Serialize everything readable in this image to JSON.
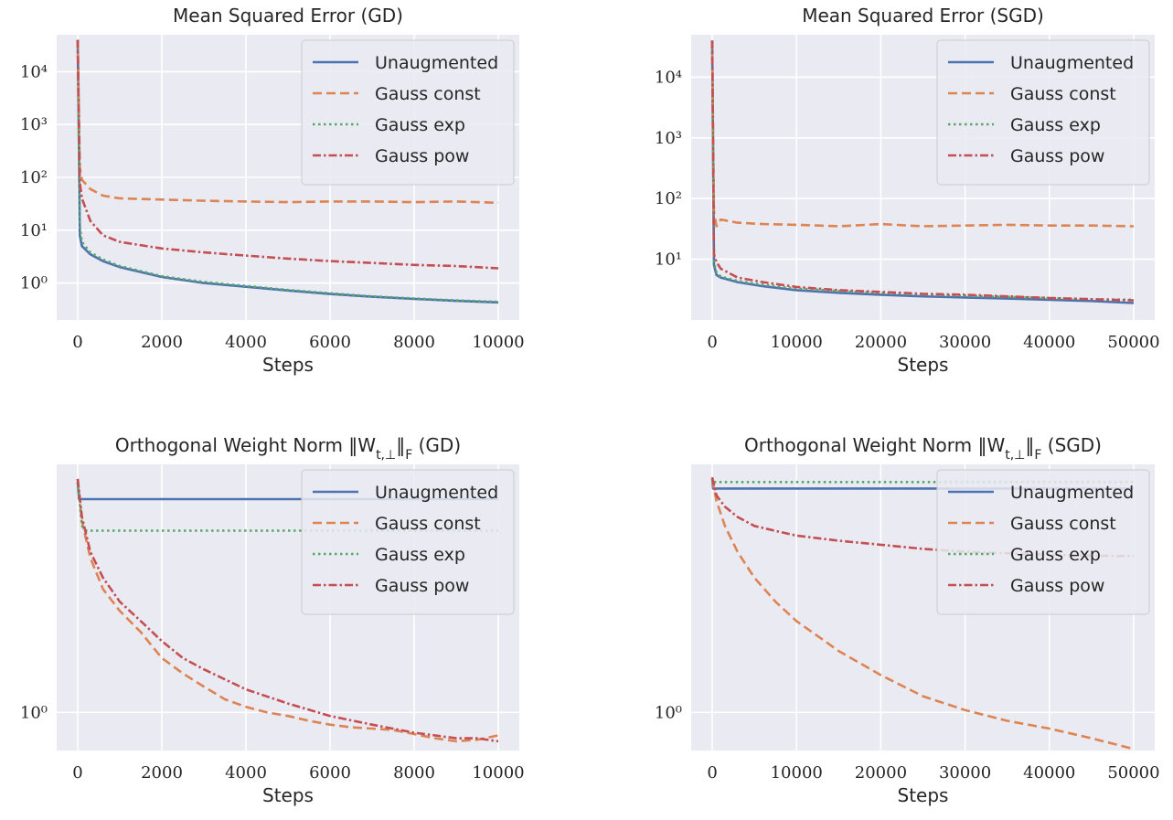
{
  "chart_data": [
    {
      "type": "line",
      "title": "Mean Squared Error (GD)",
      "xlabel": "Steps",
      "ylabel": "",
      "yscale": "log",
      "xlim": [
        -500,
        10500
      ],
      "ylim": [
        0.2,
        50000
      ],
      "xticks": [
        0,
        2000,
        4000,
        6000,
        8000,
        10000
      ],
      "xtick_labels": [
        "0",
        "2000",
        "4000",
        "6000",
        "8000",
        "10000"
      ],
      "yticks": [
        1,
        10,
        100,
        1000,
        10000
      ],
      "ytick_labels": [
        "10⁰",
        "10¹",
        "10²",
        "10³",
        "10⁴"
      ],
      "legend_position": "top-right",
      "series": [
        {
          "name": "Unaugmented",
          "color": "#4c72b0",
          "style": "solid",
          "x": [
            0,
            50,
            100,
            300,
            600,
            1000,
            2000,
            3000,
            4000,
            5000,
            6000,
            7000,
            8000,
            9000,
            10000
          ],
          "y": [
            40000,
            8,
            5,
            3.5,
            2.6,
            2.0,
            1.3,
            1.0,
            0.85,
            0.72,
            0.62,
            0.55,
            0.5,
            0.46,
            0.43
          ]
        },
        {
          "name": "Gauss const",
          "color": "#dd8452",
          "style": "dashed",
          "x": [
            0,
            50,
            100,
            300,
            600,
            1000,
            2000,
            3000,
            4000,
            5000,
            6000,
            7000,
            8000,
            9000,
            10000
          ],
          "y": [
            40000,
            150,
            90,
            60,
            45,
            40,
            38,
            36,
            35,
            34,
            35,
            35,
            34,
            35,
            33
          ]
        },
        {
          "name": "Gauss exp",
          "color": "#55a868",
          "style": "dotted",
          "x": [
            0,
            50,
            100,
            300,
            600,
            1000,
            2000,
            3000,
            4000,
            5000,
            6000,
            7000,
            8000,
            9000,
            10000
          ],
          "y": [
            40000,
            12,
            6,
            3.8,
            2.8,
            2.1,
            1.35,
            1.05,
            0.88,
            0.74,
            0.64,
            0.56,
            0.51,
            0.47,
            0.44
          ]
        },
        {
          "name": "Gauss pow",
          "color": "#c44e52",
          "style": "dashdot",
          "x": [
            0,
            50,
            100,
            300,
            600,
            1000,
            2000,
            3000,
            4000,
            5000,
            6000,
            7000,
            8000,
            9000,
            10000
          ],
          "y": [
            40000,
            80,
            40,
            15,
            8,
            6,
            4.5,
            3.8,
            3.3,
            2.9,
            2.6,
            2.4,
            2.2,
            2.1,
            1.9
          ]
        }
      ]
    },
    {
      "type": "line",
      "title": "Mean Squared Error (SGD)",
      "xlabel": "Steps",
      "ylabel": "",
      "yscale": "log",
      "xlim": [
        -2500,
        52500
      ],
      "ylim": [
        1.0,
        50000
      ],
      "xticks": [
        0,
        10000,
        20000,
        30000,
        40000,
        50000
      ],
      "xtick_labels": [
        "0",
        "10000",
        "20000",
        "30000",
        "40000",
        "50000"
      ],
      "yticks": [
        10,
        100,
        1000,
        10000
      ],
      "ytick_labels": [
        "10¹",
        "10²",
        "10³",
        "10⁴"
      ],
      "legend_position": "top-right",
      "series": [
        {
          "name": "Unaugmented",
          "color": "#4c72b0",
          "style": "solid",
          "x": [
            0,
            200,
            500,
            1000,
            3000,
            6000,
            10000,
            15000,
            20000,
            25000,
            30000,
            35000,
            40000,
            45000,
            50000
          ],
          "y": [
            40000,
            8,
            5.5,
            5.0,
            4.2,
            3.6,
            3.1,
            2.8,
            2.6,
            2.45,
            2.35,
            2.25,
            2.15,
            2.05,
            1.9
          ]
        },
        {
          "name": "Gauss const",
          "color": "#dd8452",
          "style": "dashed",
          "x": [
            0,
            200,
            500,
            1000,
            3000,
            6000,
            10000,
            15000,
            20000,
            25000,
            30000,
            35000,
            40000,
            45000,
            50000
          ],
          "y": [
            40000,
            60,
            35,
            45,
            40,
            38,
            37,
            35,
            38,
            35,
            36,
            37,
            36,
            36,
            35
          ]
        },
        {
          "name": "Gauss exp",
          "color": "#55a868",
          "style": "dotted",
          "x": [
            0,
            200,
            500,
            1000,
            3000,
            6000,
            10000,
            15000,
            20000,
            25000,
            30000,
            35000,
            40000,
            45000,
            50000
          ],
          "y": [
            40000,
            9,
            6,
            5.2,
            4.4,
            3.8,
            3.3,
            3.0,
            2.8,
            2.6,
            2.5,
            2.4,
            2.3,
            2.2,
            2.15
          ]
        },
        {
          "name": "Gauss pow",
          "color": "#c44e52",
          "style": "dashdot",
          "x": [
            0,
            200,
            500,
            1000,
            3000,
            6000,
            10000,
            15000,
            20000,
            25000,
            30000,
            35000,
            40000,
            45000,
            50000
          ],
          "y": [
            40000,
            12,
            9,
            7,
            5,
            4.2,
            3.5,
            3.1,
            2.9,
            2.7,
            2.6,
            2.45,
            2.3,
            2.2,
            2.1
          ]
        }
      ]
    },
    {
      "type": "line",
      "title": "Orthogonal Weight Norm ‖W",
      "title_sub": "t,⊥",
      "title_mid": "‖",
      "title_sub2": "F",
      "title_end": " (GD)",
      "xlabel": "Steps",
      "ylabel": "",
      "yscale": "log",
      "xlim": [
        -500,
        10500
      ],
      "ylim": [
        0.72,
        8.5
      ],
      "xticks": [
        0,
        2000,
        4000,
        6000,
        8000,
        10000
      ],
      "xtick_labels": [
        "0",
        "2000",
        "4000",
        "6000",
        "8000",
        "10000"
      ],
      "yticks": [
        1
      ],
      "ytick_labels": [
        "10⁰"
      ],
      "legend_position": "top-right",
      "series": [
        {
          "name": "Unaugmented",
          "color": "#4c72b0",
          "style": "solid",
          "x": [
            0,
            30,
            10000
          ],
          "y": [
            7.3,
            6.3,
            6.3
          ]
        },
        {
          "name": "Gauss const",
          "color": "#dd8452",
          "style": "dashed",
          "x": [
            0,
            100,
            300,
            600,
            1000,
            1500,
            2000,
            2500,
            3000,
            3500,
            4000,
            4500,
            5000,
            5500,
            6000,
            6500,
            7000,
            7500,
            8000,
            8500,
            9000,
            9500,
            10000
          ],
          "y": [
            7.5,
            5.2,
            3.8,
            2.9,
            2.4,
            2.0,
            1.6,
            1.4,
            1.25,
            1.12,
            1.05,
            1.0,
            0.97,
            0.93,
            0.9,
            0.88,
            0.87,
            0.86,
            0.83,
            0.8,
            0.78,
            0.79,
            0.82
          ]
        },
        {
          "name": "Gauss exp",
          "color": "#55a868",
          "style": "dotted",
          "x": [
            0,
            100,
            200,
            10000
          ],
          "y": [
            7.3,
            5.0,
            4.8,
            4.8
          ]
        },
        {
          "name": "Gauss pow",
          "color": "#c44e52",
          "style": "dashdot",
          "x": [
            0,
            100,
            300,
            600,
            1000,
            1500,
            2000,
            2500,
            3000,
            4000,
            5000,
            6000,
            7000,
            8000,
            8500,
            9000,
            9500,
            10000
          ],
          "y": [
            7.5,
            5.4,
            4.0,
            3.2,
            2.6,
            2.2,
            1.85,
            1.6,
            1.45,
            1.22,
            1.08,
            0.97,
            0.9,
            0.84,
            0.82,
            0.8,
            0.8,
            0.78
          ]
        }
      ]
    },
    {
      "type": "line",
      "title": "Orthogonal Weight Norm ‖W",
      "title_sub": "t,⊥",
      "title_mid": "‖",
      "title_sub2": "F",
      "title_end": " (SGD)",
      "xlabel": "Steps",
      "ylabel": "",
      "yscale": "log",
      "xlim": [
        -2500,
        52500
      ],
      "ylim": [
        0.72,
        8.5
      ],
      "xticks": [
        0,
        10000,
        20000,
        30000,
        40000,
        50000
      ],
      "xtick_labels": [
        "0",
        "10000",
        "20000",
        "30000",
        "40000",
        "50000"
      ],
      "yticks": [
        1
      ],
      "ytick_labels": [
        "10⁰"
      ],
      "legend_position": "top-right",
      "series": [
        {
          "name": "Unaugmented",
          "color": "#4c72b0",
          "style": "solid",
          "x": [
            0,
            100,
            50000
          ],
          "y": [
            7.5,
            6.9,
            6.9
          ]
        },
        {
          "name": "Gauss const",
          "color": "#dd8452",
          "style": "dashed",
          "x": [
            0,
            500,
            1500,
            3000,
            5000,
            7500,
            10000,
            15000,
            20000,
            25000,
            30000,
            35000,
            40000,
            45000,
            50000
          ],
          "y": [
            7.5,
            6.2,
            5.0,
            4.0,
            3.2,
            2.6,
            2.2,
            1.7,
            1.38,
            1.15,
            1.02,
            0.93,
            0.87,
            0.8,
            0.73
          ]
        },
        {
          "name": "Gauss exp",
          "color": "#55a868",
          "style": "dotted",
          "x": [
            0,
            100,
            50000
          ],
          "y": [
            7.6,
            7.3,
            7.3
          ]
        },
        {
          "name": "Gauss pow",
          "color": "#c44e52",
          "style": "dashdot",
          "x": [
            0,
            500,
            1500,
            3000,
            5000,
            8000,
            10000,
            15000,
            20000,
            25000,
            30000,
            35000,
            40000,
            45000,
            50000
          ],
          "y": [
            7.6,
            6.5,
            5.9,
            5.4,
            5.0,
            4.75,
            4.6,
            4.4,
            4.25,
            4.1,
            4.0,
            3.95,
            3.9,
            3.87,
            3.85
          ]
        }
      ]
    }
  ]
}
